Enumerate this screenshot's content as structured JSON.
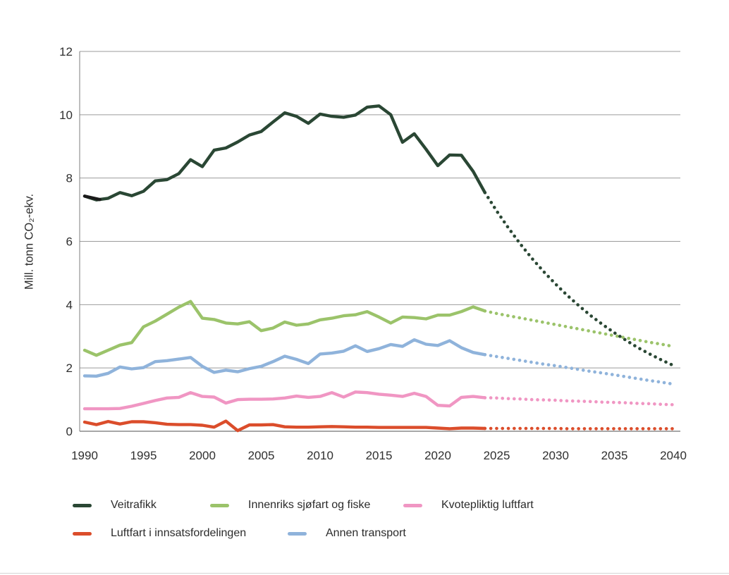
{
  "chart_data": {
    "type": "line",
    "title": "",
    "y_axis_title": "Mill. tonn CO₂-ekv.",
    "xlabel": "",
    "ylabel": "Mill. tonn CO₂-ekv.",
    "xlim": [
      1990,
      2040
    ],
    "ylim": [
      0,
      12
    ],
    "x_ticks": [
      1990,
      1995,
      2000,
      2005,
      2010,
      2015,
      2020,
      2025,
      2030,
      2035,
      2040
    ],
    "y_ticks": [
      0,
      2,
      4,
      6,
      8,
      10,
      12
    ],
    "grid": "horizontal",
    "legend_position": "bottom",
    "line_style_note": "solid = historical 1990-2024, dotted = projection 2024-2040",
    "historical_years": [
      1990,
      1991,
      1992,
      1993,
      1994,
      1995,
      1996,
      1997,
      1998,
      1999,
      2000,
      2001,
      2002,
      2003,
      2004,
      2005,
      2006,
      2007,
      2008,
      2009,
      2010,
      2011,
      2012,
      2013,
      2014,
      2015,
      2016,
      2017,
      2018,
      2019,
      2020,
      2021,
      2022,
      2023,
      2024
    ],
    "projection_years": [
      2024,
      2025,
      2026,
      2027,
      2028,
      2029,
      2030,
      2031,
      2032,
      2033,
      2034,
      2035,
      2036,
      2037,
      2038,
      2039,
      2040
    ],
    "draw_order": [
      1,
      4,
      2,
      3,
      0
    ],
    "series": [
      {
        "id": "veitrafikk",
        "name": "Veitrafikk",
        "color": "#2A4734",
        "historical": [
          7.43,
          7.31,
          7.36,
          7.54,
          7.44,
          7.58,
          7.91,
          7.95,
          8.14,
          8.58,
          8.36,
          8.88,
          8.95,
          9.14,
          9.36,
          9.47,
          9.77,
          10.06,
          9.95,
          9.73,
          10.02,
          9.95,
          9.92,
          9.99,
          10.24,
          10.28,
          10.0,
          9.13,
          9.4,
          8.91,
          8.39,
          8.73,
          8.72,
          8.21,
          7.54
        ],
        "projection": [
          7.54,
          6.96,
          6.42,
          5.92,
          5.46,
          5.04,
          4.65,
          4.29,
          3.96,
          3.65,
          3.37,
          3.11,
          2.87,
          2.64,
          2.44,
          2.25,
          2.08
        ],
        "lead_segment": {
          "years": [
            1990,
            1991.3
          ],
          "values": [
            7.43,
            7.32
          ],
          "color": "#1A1A1A"
        }
      },
      {
        "id": "innenriks-sjofart-og-fiske",
        "name": "Innenriks sjøfart og fiske",
        "color": "#9BC36A",
        "historical": [
          2.56,
          2.4,
          2.56,
          2.72,
          2.8,
          3.3,
          3.48,
          3.7,
          3.92,
          4.1,
          3.57,
          3.53,
          3.42,
          3.39,
          3.46,
          3.18,
          3.26,
          3.45,
          3.35,
          3.39,
          3.52,
          3.57,
          3.65,
          3.68,
          3.78,
          3.61,
          3.42,
          3.61,
          3.59,
          3.55,
          3.67,
          3.67,
          3.78,
          3.93,
          3.8
        ],
        "projection": [
          3.8,
          3.72,
          3.65,
          3.58,
          3.51,
          3.44,
          3.37,
          3.3,
          3.23,
          3.16,
          3.09,
          3.02,
          2.95,
          2.88,
          2.81,
          2.75,
          2.68
        ]
      },
      {
        "id": "kvotepliktig-luftfart",
        "name": "Kvotepliktig luftfart",
        "color": "#F096C3",
        "historical": [
          0.71,
          0.71,
          0.71,
          0.72,
          0.79,
          0.88,
          0.97,
          1.05,
          1.07,
          1.22,
          1.1,
          1.08,
          0.89,
          1.0,
          1.01,
          1.01,
          1.02,
          1.05,
          1.11,
          1.07,
          1.1,
          1.22,
          1.08,
          1.24,
          1.22,
          1.17,
          1.14,
          1.1,
          1.2,
          1.1,
          0.82,
          0.8,
          1.07,
          1.1,
          1.06
        ],
        "projection": [
          1.06,
          1.05,
          1.03,
          1.02,
          1.0,
          0.99,
          0.98,
          0.96,
          0.95,
          0.94,
          0.92,
          0.91,
          0.9,
          0.88,
          0.87,
          0.85,
          0.84
        ]
      },
      {
        "id": "luftfart-i-innsatsfordelingen",
        "name": "Luftfart i innsatsfordelingen",
        "color": "#DB4D2B",
        "historical": [
          0.29,
          0.21,
          0.31,
          0.23,
          0.3,
          0.3,
          0.27,
          0.22,
          0.21,
          0.21,
          0.19,
          0.13,
          0.32,
          0.02,
          0.2,
          0.2,
          0.21,
          0.14,
          0.13,
          0.13,
          0.14,
          0.15,
          0.14,
          0.13,
          0.13,
          0.12,
          0.12,
          0.12,
          0.12,
          0.12,
          0.1,
          0.08,
          0.1,
          0.1,
          0.09
        ],
        "projection": [
          0.09,
          0.09,
          0.09,
          0.09,
          0.09,
          0.09,
          0.09,
          0.08,
          0.08,
          0.08,
          0.08,
          0.08,
          0.08,
          0.08,
          0.08,
          0.08,
          0.08
        ]
      },
      {
        "id": "annen-transport",
        "name": "Annen transport",
        "color": "#8FB3DB",
        "historical": [
          1.75,
          1.74,
          1.83,
          2.03,
          1.97,
          2.01,
          2.2,
          2.23,
          2.28,
          2.33,
          2.05,
          1.86,
          1.93,
          1.88,
          1.98,
          2.05,
          2.2,
          2.37,
          2.27,
          2.14,
          2.44,
          2.47,
          2.53,
          2.7,
          2.52,
          2.61,
          2.74,
          2.68,
          2.89,
          2.75,
          2.71,
          2.86,
          2.64,
          2.49,
          2.42
        ],
        "projection": [
          2.42,
          2.36,
          2.3,
          2.24,
          2.18,
          2.12,
          2.07,
          2.01,
          1.95,
          1.89,
          1.84,
          1.78,
          1.72,
          1.66,
          1.6,
          1.55,
          1.49
        ]
      }
    ]
  }
}
